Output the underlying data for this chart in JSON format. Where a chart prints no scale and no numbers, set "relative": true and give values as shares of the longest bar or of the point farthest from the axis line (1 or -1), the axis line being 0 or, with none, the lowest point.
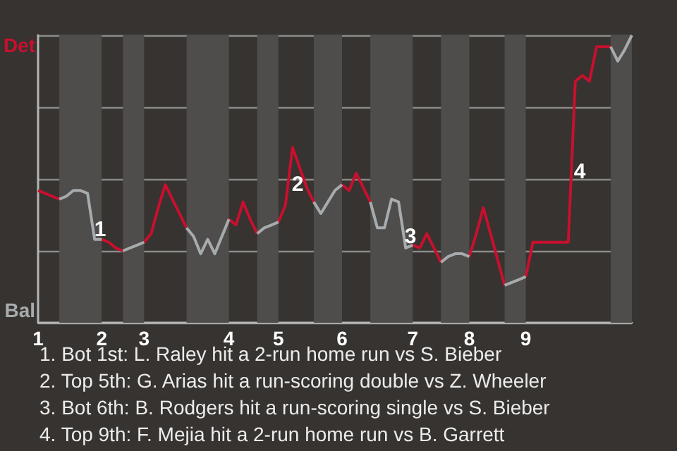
{
  "chart_data": {
    "type": "line",
    "relative": true,
    "categories": [
      "1",
      null,
      null,
      null,
      null,
      null,
      null,
      null,
      null,
      "2",
      null,
      null,
      null,
      null,
      null,
      "3",
      null,
      null,
      null,
      null,
      null,
      null,
      null,
      null,
      null,
      null,
      null,
      "4",
      null,
      null,
      null,
      null,
      null,
      null,
      "5",
      null,
      null,
      null,
      null,
      null,
      null,
      null,
      null,
      "6",
      null,
      null,
      null,
      null,
      null,
      null,
      null,
      null,
      null,
      "7",
      null,
      null,
      null,
      null,
      null,
      null,
      null,
      "8",
      null,
      null,
      null,
      null,
      null,
      null,
      null,
      "9",
      null,
      null,
      null,
      null,
      null,
      null,
      null,
      null,
      null,
      null,
      null,
      null,
      null,
      null,
      null
    ],
    "grid": "y",
    "marker": "none",
    "series": [
      {
        "color": "#c8102e",
        "values": [
          0.46,
          0.45,
          0.44,
          0.43,
          null,
          null,
          null,
          null,
          null,
          0.29,
          0.28,
          0.26,
          0.25,
          null,
          null,
          0.28,
          0.31,
          0.4,
          0.48,
          0.43,
          0.38,
          0.33,
          null,
          null,
          null,
          null,
          null,
          0.36,
          0.34,
          0.42,
          0.36,
          0.31,
          null,
          null,
          0.35,
          0.41,
          0.61,
          0.54,
          0.47,
          0.42,
          null,
          null,
          null,
          0.48,
          0.46,
          0.52,
          0.47,
          0.42,
          null,
          null,
          null,
          null,
          null,
          0.27,
          0.26,
          0.31,
          0.26,
          0.21,
          null,
          null,
          null,
          0.23,
          0.31,
          0.4,
          0.31,
          0.22,
          0.13,
          null,
          null,
          0.16,
          0.28,
          0.28,
          0.28,
          0.28,
          0.28,
          0.28,
          0.84,
          0.86,
          0.84,
          0.96,
          0.96,
          0.96,
          null,
          null,
          null
        ]
      },
      {
        "color": "#a7abad",
        "values": [
          null,
          null,
          null,
          0.43,
          0.44,
          0.46,
          0.46,
          0.45,
          0.29,
          0.29,
          null,
          null,
          0.25,
          0.26,
          0.27,
          0.28,
          null,
          null,
          null,
          null,
          null,
          0.33,
          0.3,
          0.24,
          0.29,
          0.24,
          0.3,
          0.36,
          null,
          null,
          null,
          0.31,
          0.33,
          0.34,
          0.35,
          null,
          null,
          null,
          null,
          0.42,
          0.38,
          0.42,
          0.46,
          0.48,
          null,
          null,
          null,
          0.42,
          0.33,
          0.33,
          0.43,
          0.42,
          0.26,
          0.27,
          null,
          null,
          null,
          0.21,
          0.23,
          0.24,
          0.24,
          0.23,
          null,
          null,
          null,
          null,
          0.13,
          0.14,
          0.15,
          0.16,
          null,
          null,
          null,
          null,
          null,
          null,
          null,
          null,
          null,
          null,
          null,
          0.96,
          0.91,
          0.95,
          1
        ]
      }
    ],
    "annotations": [
      "Det",
      "Bal",
      "1",
      "2",
      "3",
      "4",
      "1. Bot 1st: L. Raley hit a 2-run home run vs S. Bieber",
      "2. Top 5th: G. Arias hit a run-scoring double vs Z. Wheeler",
      "3. Bot 6th: B. Rodgers hit a run-scoring single vs S. Bieber",
      "4. Top 9th: F. Mejia hit a 2-run home run vs B. Garrett"
    ]
  }
}
